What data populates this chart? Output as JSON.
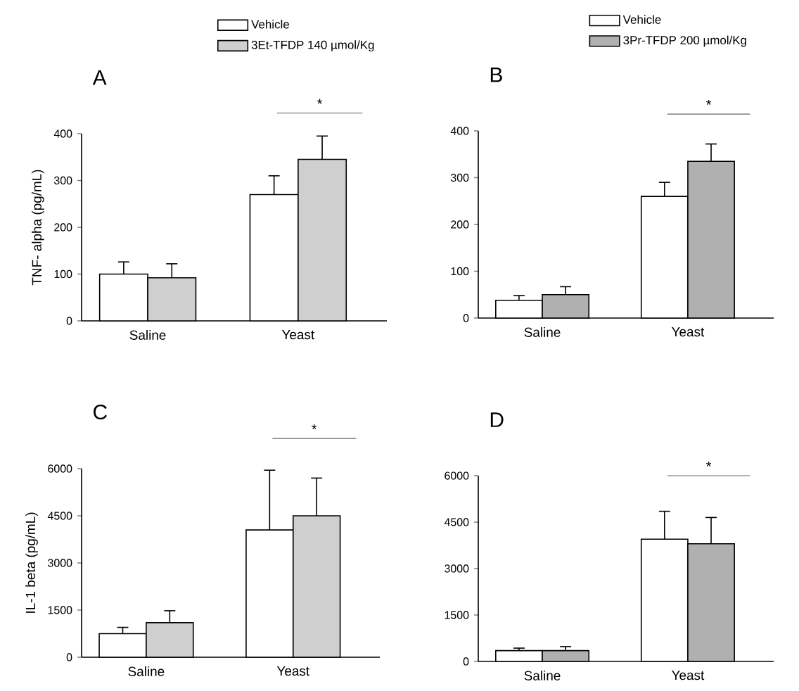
{
  "chart_data": [
    {
      "type": "bar",
      "title": "A",
      "ylabel": "TNF- alpha (pg/mL)",
      "categories": [
        "Saline",
        "Yeast"
      ],
      "legend": "top",
      "series": [
        {
          "name": "Vehicle",
          "color": "#ffffff",
          "values": [
            100,
            270
          ],
          "errors": [
            26,
            40
          ]
        },
        {
          "name": "3Et-TFDP 140 µmol/Kg",
          "color": "#cfcfcf",
          "values": [
            92,
            345
          ],
          "errors": [
            30,
            50
          ]
        }
      ],
      "ylim": [
        0,
        400
      ],
      "yticks": [
        0,
        100,
        200,
        300,
        400
      ],
      "annotations": [
        "*"
      ]
    },
    {
      "type": "bar",
      "title": "B",
      "categories": [
        "Saline",
        "Yeast"
      ],
      "legend": "top",
      "series": [
        {
          "name": "Vehicle",
          "color": "#ffffff",
          "values": [
            38,
            260
          ],
          "errors": [
            10,
            30
          ]
        },
        {
          "name": "3Pr-TFDP 200 µmol/Kg",
          "color": "#b0b0b0",
          "values": [
            50,
            335
          ],
          "errors": [
            17,
            37
          ]
        }
      ],
      "ylim": [
        0,
        400
      ],
      "yticks": [
        0,
        100,
        200,
        300,
        400
      ],
      "annotations": [
        "*"
      ]
    },
    {
      "type": "bar",
      "title": "C",
      "ylabel": "IL-1 beta (pg/mL)",
      "categories": [
        "Saline",
        "Yeast"
      ],
      "series": [
        {
          "color": "#ffffff",
          "values": [
            750,
            4050
          ],
          "errors": [
            200,
            1900
          ]
        },
        {
          "color": "#cfcfcf",
          "values": [
            1100,
            4500
          ],
          "errors": [
            380,
            1200
          ]
        }
      ],
      "ylim": [
        0,
        6000
      ],
      "yticks": [
        0,
        1500,
        3000,
        4500,
        6000
      ],
      "annotations": [
        "*"
      ]
    },
    {
      "type": "bar",
      "title": "D",
      "categories": [
        "Saline",
        "Yeast"
      ],
      "series": [
        {
          "color": "#ffffff",
          "values": [
            350,
            3950
          ],
          "errors": [
            80,
            900
          ]
        },
        {
          "color": "#b0b0b0",
          "values": [
            350,
            3800
          ],
          "errors": [
            130,
            850
          ]
        }
      ],
      "ylim": [
        0,
        6000
      ],
      "yticks": [
        0,
        1500,
        3000,
        4500,
        6000
      ],
      "annotations": [
        "*"
      ]
    }
  ]
}
